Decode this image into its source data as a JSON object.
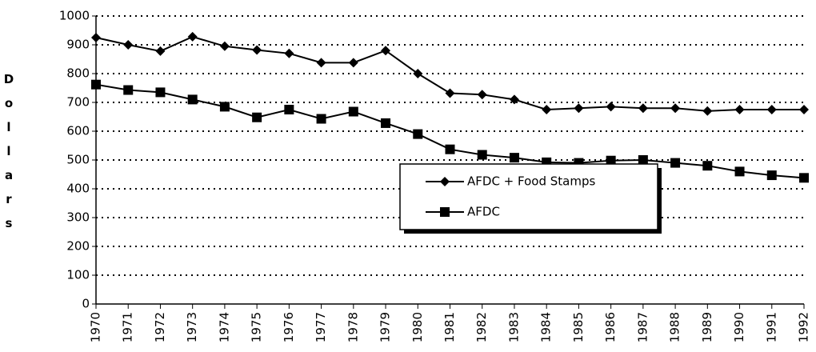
{
  "chart_data": {
    "type": "line",
    "ylabel": "Dollars",
    "x": [
      1970,
      1971,
      1972,
      1973,
      1974,
      1975,
      1976,
      1977,
      1978,
      1979,
      1980,
      1981,
      1982,
      1983,
      1984,
      1985,
      1986,
      1987,
      1988,
      1989,
      1990,
      1991,
      1992
    ],
    "xlim": [
      1970,
      1992
    ],
    "xticks": [
      1970,
      1971,
      1972,
      1973,
      1974,
      1975,
      1976,
      1977,
      1978,
      1979,
      1980,
      1981,
      1982,
      1983,
      1984,
      1985,
      1986,
      1987,
      1988,
      1989,
      1990,
      1991,
      1992
    ],
    "ylim": [
      0,
      1000
    ],
    "yticks": [
      0,
      100,
      200,
      300,
      400,
      500,
      600,
      700,
      800,
      900,
      1000
    ],
    "grid": true,
    "series": [
      {
        "name": "AFDC + Food Stamps",
        "color": "#000000",
        "marker": "diamond",
        "values": [
          925,
          900,
          878,
          928,
          895,
          882,
          870,
          838,
          838,
          880,
          800,
          732,
          727,
          710,
          675,
          680,
          685,
          680,
          680,
          670,
          675,
          675,
          675
        ]
      },
      {
        "name": "AFDC",
        "color": "#000000",
        "marker": "square",
        "values": [
          762,
          743,
          735,
          710,
          685,
          648,
          675,
          643,
          668,
          628,
          590,
          537,
          518,
          508,
          492,
          490,
          498,
          500,
          490,
          480,
          460,
          447,
          438
        ]
      }
    ]
  }
}
